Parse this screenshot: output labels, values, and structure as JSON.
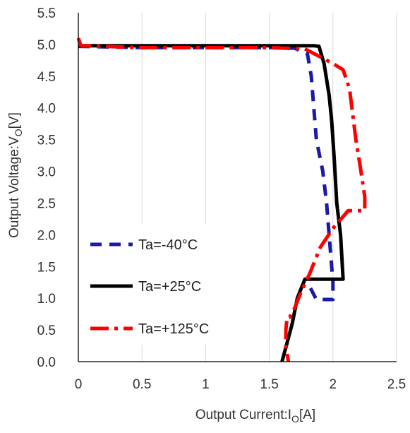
{
  "chart_data": {
    "type": "line",
    "title": "",
    "xlabel_parts": {
      "prefix": "Output Current:I",
      "sub": "O",
      "suffix": "[A]"
    },
    "ylabel_parts": {
      "prefix": "Output Voltage:V",
      "sub": "O",
      "suffix": "[V]"
    },
    "xlim": [
      0,
      2.5
    ],
    "ylim": [
      0,
      5.5
    ],
    "x_ticks": [
      "0",
      "0.5",
      "1",
      "1.5",
      "2",
      "2.5"
    ],
    "y_ticks": [
      "0.0",
      "0.5",
      "1.0",
      "1.5",
      "2.0",
      "2.5",
      "3.0",
      "3.5",
      "4.0",
      "4.5",
      "5.0",
      "5.5"
    ],
    "x_tick_values": [
      0,
      0.5,
      1,
      1.5,
      2,
      2.5
    ],
    "y_tick_values": [
      0,
      0.5,
      1,
      1.5,
      2,
      2.5,
      3,
      3.5,
      4,
      4.5,
      5,
      5.5
    ],
    "grid": "vertical",
    "legend_placement": "lower-left",
    "series": [
      {
        "name": "Ta=-40°C",
        "color": "#1a1aa6",
        "style": "dashed",
        "points": [
          [
            0,
            4.97
          ],
          [
            0.5,
            4.95
          ],
          [
            1.0,
            4.95
          ],
          [
            1.5,
            4.95
          ],
          [
            1.7,
            4.94
          ],
          [
            1.8,
            4.85
          ],
          [
            1.83,
            4.5
          ],
          [
            1.87,
            3.5
          ],
          [
            1.92,
            3.0
          ],
          [
            1.95,
            2.5
          ],
          [
            1.97,
            2.0
          ],
          [
            1.99,
            1.5
          ],
          [
            2.0,
            1.25
          ],
          [
            2.0,
            0.98
          ],
          [
            1.87,
            0.98
          ],
          [
            1.8,
            1.25
          ]
        ]
      },
      {
        "name": "Ta=+25°C",
        "color": "#000000",
        "style": "solid",
        "points": [
          [
            0,
            4.98
          ],
          [
            0.5,
            4.98
          ],
          [
            1.0,
            4.98
          ],
          [
            1.5,
            4.98
          ],
          [
            1.85,
            4.98
          ],
          [
            1.89,
            4.97
          ],
          [
            1.93,
            4.7
          ],
          [
            1.97,
            4.2
          ],
          [
            1.99,
            3.8
          ],
          [
            2.01,
            3.2
          ],
          [
            2.03,
            2.5
          ],
          [
            2.06,
            2.0
          ],
          [
            2.08,
            1.3
          ],
          [
            1.92,
            1.3
          ],
          [
            1.78,
            1.3
          ],
          [
            1.72,
            1.0
          ],
          [
            1.68,
            0.6
          ],
          [
            1.64,
            0.3
          ],
          [
            1.6,
            0.0
          ]
        ]
      },
      {
        "name": "Ta=+125°C",
        "color": "#ff0000",
        "style": "dashdot",
        "points": [
          [
            0,
            5.1
          ],
          [
            0.02,
            4.98
          ],
          [
            0.5,
            4.95
          ],
          [
            1.0,
            4.95
          ],
          [
            1.5,
            4.95
          ],
          [
            1.78,
            4.93
          ],
          [
            2.0,
            4.7
          ],
          [
            2.08,
            4.6
          ],
          [
            2.13,
            4.3
          ],
          [
            2.18,
            3.5
          ],
          [
            2.22,
            3.0
          ],
          [
            2.25,
            2.6
          ],
          [
            2.25,
            2.38
          ],
          [
            2.2,
            2.38
          ],
          [
            2.12,
            2.38
          ],
          [
            2.0,
            2.1
          ],
          [
            1.9,
            1.8
          ],
          [
            1.82,
            1.4
          ],
          [
            1.75,
            1.1
          ],
          [
            1.7,
            0.85
          ],
          [
            1.66,
            0.7
          ],
          [
            1.64,
            0.7
          ],
          [
            1.63,
            0.5
          ],
          [
            1.63,
            0.25
          ],
          [
            1.65,
            0.0
          ]
        ]
      }
    ]
  }
}
